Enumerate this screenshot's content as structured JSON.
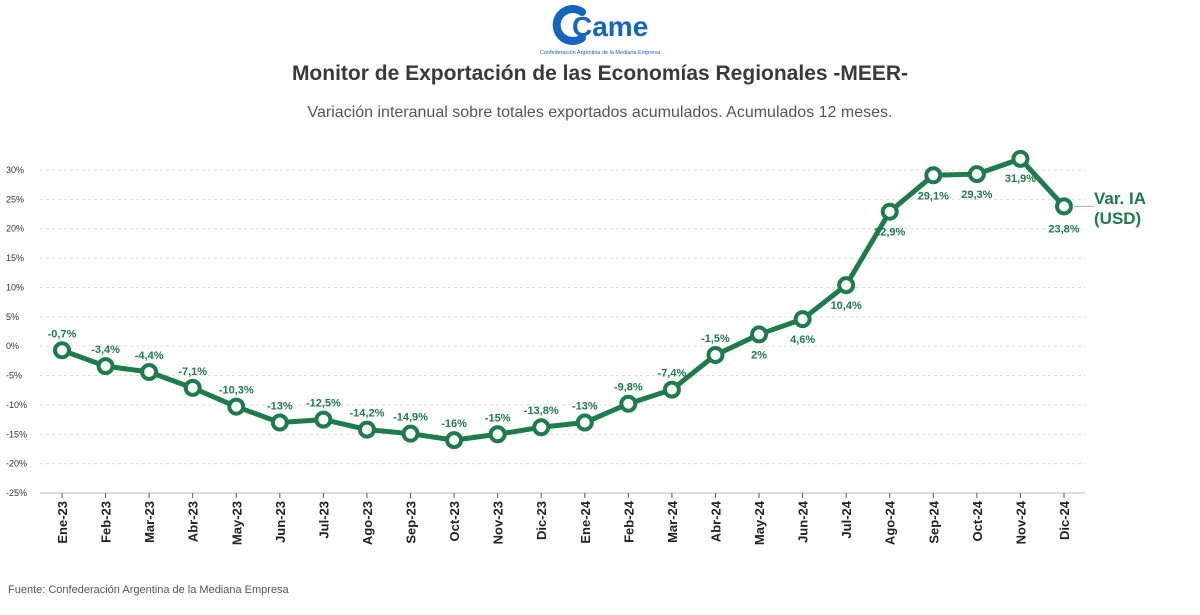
{
  "header": {
    "logo_text": "Came",
    "logo_subtitle": "Confederación Argentina de la Mediana Empresa",
    "title": "Monitor de Exportación de las Economías Regionales -MEER-",
    "subtitle": "Variación interanual sobre totales exportados acumulados. Acumulados 12 meses."
  },
  "footer": {
    "source": "Fuente: Confederación Argentina de la Mediana Empresa"
  },
  "colors": {
    "line": "#1e7b4b",
    "label": "#1e7b4b",
    "grid": "#dddddd",
    "logo": "#1565c0"
  },
  "chart_data": {
    "type": "line",
    "title": "Monitor de Exportación de las Economías Regionales -MEER-",
    "subtitle": "Variación interanual sobre totales exportados acumulados. Acumulados 12 meses.",
    "xlabel": "",
    "ylabel": "",
    "ylim": [
      -25,
      30
    ],
    "yticks": [
      30,
      25,
      20,
      15,
      10,
      5,
      0,
      -5,
      -10,
      -15,
      -20,
      -25
    ],
    "ytick_labels": [
      "30%",
      "25%",
      "20%",
      "15%",
      "10%",
      "5%",
      "0%",
      "-5%",
      "-10%",
      "-15%",
      "-20%",
      "-25%"
    ],
    "grid": true,
    "categories": [
      "Ene-23",
      "Feb-23",
      "Mar-23",
      "Abr-23",
      "May-23",
      "Jun-23",
      "Jul-23",
      "Ago-23",
      "Sep-23",
      "Oct-23",
      "Nov-23",
      "Dic-23",
      "Ene-24",
      "Feb-24",
      "Mar-24",
      "Abr-24",
      "May-24",
      "Jun-24",
      "Jul-24",
      "Ago-24",
      "Sep-24",
      "Oct-24",
      "Nov-24",
      "Dic-24"
    ],
    "series": [
      {
        "name": "Var. IA (USD)",
        "values": [
          -0.7,
          -3.4,
          -4.4,
          -7.1,
          -10.3,
          -13,
          -12.5,
          -14.2,
          -14.9,
          -16,
          -15,
          -13.8,
          -13,
          -9.8,
          -7.4,
          -1.5,
          2,
          4.6,
          10.4,
          22.9,
          29.1,
          29.3,
          31.9,
          23.8
        ],
        "labels": [
          "-0,7%",
          "-3,4%",
          "-4,4%",
          "-7,1%",
          "-10,3%",
          "-13%",
          "-12,5%",
          "-14,2%",
          "-14,9%",
          "-16%",
          "-15%",
          "-13,8%",
          "-13%",
          "-9,8%",
          "-7,4%",
          "-1,5%",
          "2%",
          "4,6%",
          "10,4%",
          "22,9%",
          "29,1%",
          "29,3%",
          "31,9%",
          "23,8%"
        ],
        "end_label_lines": [
          "Var. IA",
          "(USD)"
        ]
      }
    ]
  }
}
